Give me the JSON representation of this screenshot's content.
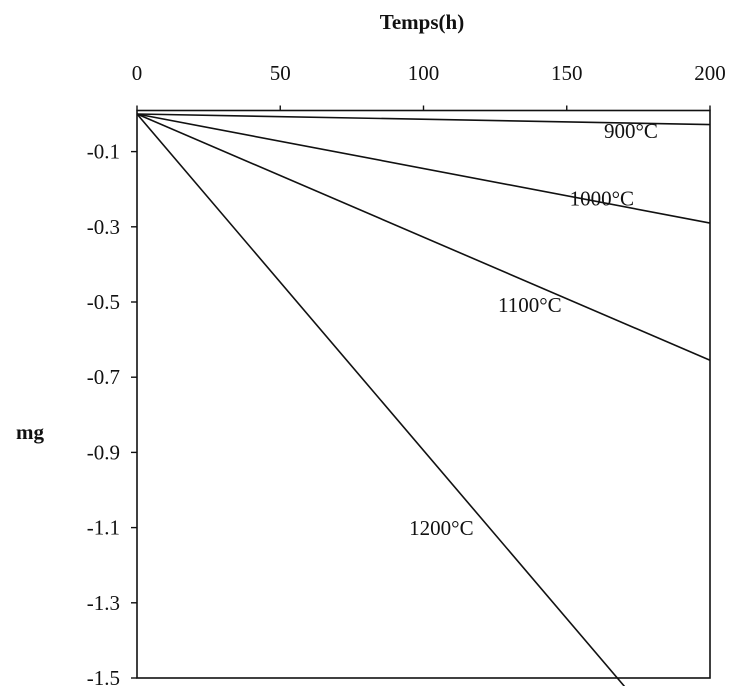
{
  "chart_data": {
    "type": "line",
    "xlabel": "Temps(h)",
    "ylabel": "mg",
    "xlim": [
      0,
      200
    ],
    "ylim": [
      -1.5,
      0.1
    ],
    "x_ticks": [
      "0",
      "50",
      "100",
      "150",
      "200"
    ],
    "x_tick_values": [
      0,
      50,
      100,
      150,
      200
    ],
    "y_ticks": [
      "-0.1",
      "-0.3",
      "-0.5",
      "-0.7",
      "-0.9",
      "-1.1",
      "-1.3",
      "-1.5"
    ],
    "y_tick_values": [
      -0.1,
      -0.3,
      -0.5,
      -0.7,
      -0.9,
      -1.1,
      -1.3,
      -1.5
    ],
    "x_axis_position": "top",
    "grid": false,
    "series": [
      {
        "name": "900°C",
        "x": [
          0,
          200
        ],
        "y": [
          0,
          -0.028
        ],
        "label": "900°C",
        "label_at": [
          163,
          -0.064
        ]
      },
      {
        "name": "1000°C",
        "x": [
          0,
          200
        ],
        "y": [
          0,
          -0.29
        ],
        "label": "1000°C",
        "label_at": [
          151,
          -0.243
        ]
      },
      {
        "name": "1100°C",
        "x": [
          0,
          200
        ],
        "y": [
          0,
          -0.655
        ],
        "label": "1100°C",
        "label_at": [
          126,
          -0.526
        ]
      },
      {
        "name": "1200°C",
        "x": [
          0,
          171
        ],
        "y": [
          0,
          -1.53
        ],
        "label": "1200°C",
        "label_at": [
          95,
          -1.12
        ]
      }
    ]
  }
}
